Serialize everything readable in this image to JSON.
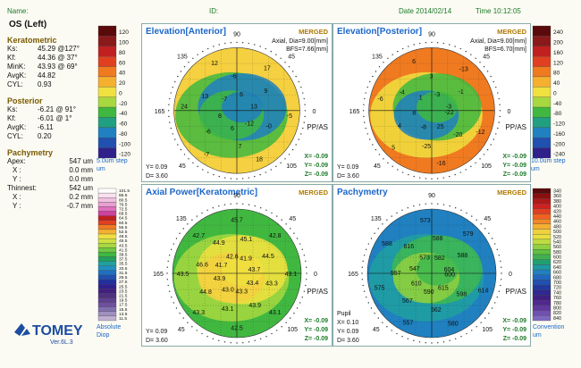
{
  "header": {
    "name_label": "Name:",
    "id_label": "ID:",
    "date": "Date 2014/02/14",
    "time": "Time 10:12:05",
    "eye": "OS (Left)"
  },
  "keratometric": {
    "title": "Keratometric",
    "ks_label": "Ks:",
    "ks": "45.29 @127°",
    "kf_label": "Kf:",
    "kf": "44.36 @ 37°",
    "mink_label": "MinK:",
    "mink": "43.93 @ 69°",
    "avgk_label": "AvgK:",
    "avgk": "44.82",
    "cyl_label": "CYL:",
    "cyl": "0.93"
  },
  "posterior": {
    "title": "Posterior",
    "ks_label": "Ks:",
    "ks": "-6.21 @ 91°",
    "kf_label": "Kf:",
    "kf": "-6.01 @ 1°",
    "avgk_label": "AvgK:",
    "avgk": "-6.11",
    "cyl_label": "CYL:",
    "cyl": "0.20"
  },
  "pachymetry_info": {
    "title": "Pachymetry",
    "apex_label": "Apex:",
    "apex": "547 um",
    "x_label": "X :",
    "x": "0.0 mm",
    "y_label": "Y :",
    "y": "0.0 mm",
    "thinnest_label": "Thinnest:",
    "thinnest": "542 um",
    "tx_label": "X :",
    "tx": "0.2 mm",
    "ty_label": "Y :",
    "ty": "-0.7 mm"
  },
  "brand": {
    "name": "TOMEY",
    "version": "Ver.6L.3"
  },
  "scales": {
    "left_top": {
      "values": [
        "120",
        "100",
        "80",
        "60",
        "40",
        "20",
        "0",
        "-20",
        "-40",
        "-60",
        "-80",
        "-100",
        "-120"
      ],
      "step": "5.0um step",
      "unit": "um"
    },
    "left_bottom": {
      "values": [
        "101.5",
        "86.5",
        "80.5",
        "76.5",
        "72.5",
        "68.5",
        "64.5",
        "60.5",
        "56.5",
        "52.5",
        "48.5",
        "45.5",
        "43.5",
        "41.5",
        "39.5",
        "37.5",
        "35.5",
        "33.5",
        "31.5",
        "29.5",
        "27.5",
        "25.5",
        "23.5",
        "21.5",
        "19.5",
        "17.5",
        "15.5",
        "13.5",
        "11.5"
      ],
      "label1": "Absolute",
      "label2": "Diop"
    },
    "right_top": {
      "values": [
        "240",
        "200",
        "160",
        "120",
        "80",
        "40",
        "0",
        "-40",
        "-80",
        "-120",
        "-160",
        "-200",
        "-240"
      ],
      "step": "10.0um step",
      "unit": "um"
    },
    "right_bottom": {
      "values": [
        "340",
        "360",
        "380",
        "400",
        "420",
        "440",
        "460",
        "480",
        "500",
        "520",
        "540",
        "560",
        "580",
        "600",
        "620",
        "640",
        "660",
        "680",
        "700",
        "720",
        "740",
        "760",
        "780",
        "800",
        "820",
        "840"
      ],
      "label": "Convention",
      "unit": "um"
    }
  },
  "panels": {
    "elev_ant": {
      "title": "Elevation[Anterior]",
      "merged": "MERGED",
      "axial": "Axial, Dia=9.00[mm]",
      "bfs": "BFS=7.66[mm]",
      "y": "Y= 0.09",
      "d": "D= 3.60",
      "pp": "PP/AS",
      "r1": "X= -0.09",
      "r2": "Y= -0.09",
      "r3": "Z= -0.09",
      "deg": [
        "135",
        "90",
        "45",
        "0",
        "105",
        "60",
        "45",
        "165",
        "150",
        "180",
        "195",
        "210",
        "225",
        "240",
        "270",
        "300",
        "315",
        "330",
        "15",
        "30",
        "75",
        "120",
        "255",
        "285",
        "345"
      ],
      "nums": [
        "13",
        "9",
        "17",
        "6",
        "-6",
        "12",
        "-7",
        "13",
        "24",
        "8",
        "-6",
        "-7",
        "6",
        "7",
        "18",
        "-12",
        "-0",
        "-5"
      ]
    },
    "elev_post": {
      "title": "Elevation[Posterior]",
      "merged": "MERGED",
      "axial": "Axial, Dia=9.00[mm]",
      "bfs": "BFS=6.70[mm]",
      "y": "Y= 0.09",
      "d": "D= 3.60",
      "pp": "PP/AS",
      "r1": "X= -0.09",
      "r2": "Y= -0.09",
      "r3": "Z= -0.09",
      "deg": [
        "135",
        "90",
        "45",
        "0",
        "105",
        "60",
        "45",
        "165",
        "150",
        "180"
      ],
      "nums": [
        "-3",
        "-1",
        "-13",
        "-3",
        "3",
        "6",
        "1",
        "-4",
        "-6",
        "8",
        "4",
        "5",
        "-8",
        "-25",
        "-16",
        "25",
        "-20",
        "-12",
        "-22"
      ]
    },
    "axial": {
      "title": "Axial Power[Keratometric]",
      "merged": "MERGED",
      "y": "Y= 0.09",
      "d": "D= 3.60",
      "pp": "PP/AS",
      "r1": "X= -0.09",
      "r2": "Y= -0.09",
      "r3": "Z= -0.09",
      "deg": [
        "135",
        "90",
        "45",
        "0",
        "105",
        "60",
        "45",
        "165",
        "150",
        "180"
      ],
      "nums": [
        "43.7",
        "44.5",
        "42.8",
        "41.9",
        "45.1",
        "45.7",
        "42.6",
        "44.9",
        "42.7",
        "41.7",
        "46.6",
        "43.5",
        "43.9",
        "44.8",
        "43.3",
        "43.0",
        "43.1",
        "42.5",
        "43.3",
        "43.9",
        "43.1",
        "43.4",
        "43.3",
        "43.1"
      ]
    },
    "pachy": {
      "title": "Pachymetry",
      "merged": "MERGED",
      "pupil": "Pupil",
      "px": "X= 0.10",
      "y": "Y= 0.09",
      "d": "D= 3.60",
      "pp": "PP/AS",
      "r1": "X= -0.09",
      "r2": "Y= -0.09",
      "r3": "Z= -0.09",
      "deg": [
        "135",
        "90",
        "45",
        "0",
        "105",
        "60",
        "45",
        "165",
        "150",
        "180"
      ],
      "nums": [
        "604",
        "588",
        "579",
        "582",
        "588",
        "573",
        "573",
        "616",
        "588",
        "547",
        "557",
        "575",
        "610",
        "567",
        "557",
        "590",
        "562",
        "580",
        "615",
        "598",
        "614",
        "600"
      ]
    }
  },
  "colors": {
    "accent": "#1b66c9",
    "label": "#1d7a2a",
    "section": "#7a5a00"
  }
}
